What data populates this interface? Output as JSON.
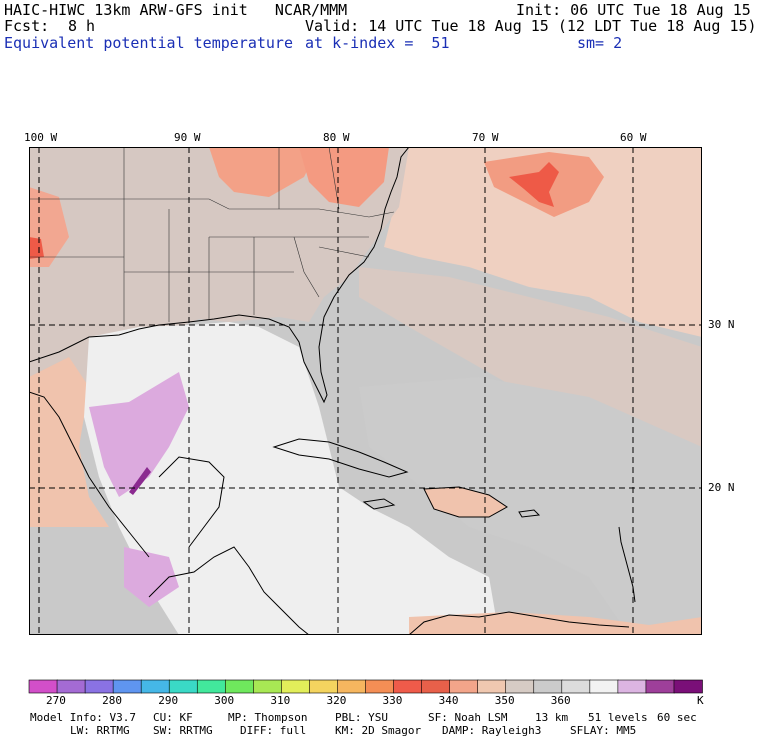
{
  "header": {
    "line1_left": "HAIC-HIWC 13km ARW-GFS init   NCAR/MMM",
    "line1_right": "Init: 06 UTC Tue 18 Aug 15",
    "fcst_label": "Fcst:",
    "fcst_value": "8 h",
    "valid": "Valid: 14 UTC Tue 18 Aug 15 (12 LDT Tue 18 Aug 15)",
    "field": "Equivalent potential temperature",
    "level": "at k-index =  51",
    "smooth": "sm= 2"
  },
  "map": {
    "lon_labels": [
      "100 W",
      "90 W",
      "80 W",
      "70 W",
      "60 W"
    ],
    "lat_labels": [
      "30 N",
      "20 N"
    ],
    "colors": {
      "land_warm": "#f2c9b4",
      "ocean_gray": "#c9c9c9",
      "gulf_white": "#efefef",
      "pale_pink": "#eed3c6",
      "salmon": "#f4907a",
      "red": "#ee5544",
      "lavender": "#dcaade",
      "purple": "#8b2a90",
      "coast": "#000000"
    }
  },
  "colorbar": {
    "colors": [
      "#d24fc9",
      "#a46bd4",
      "#8a72e3",
      "#5f95f0",
      "#45b7e7",
      "#3ad9c6",
      "#42e89c",
      "#6fe85d",
      "#a8e854",
      "#e2ee5a",
      "#f4d45f",
      "#f6b65f",
      "#f48e55",
      "#ef5b4a",
      "#e8604a",
      "#f3a58a",
      "#f0c8b0",
      "#d6cbc4",
      "#cbcbcb",
      "#dcdcdc",
      "#f2f2f2",
      "#dcb5e2",
      "#9e3f9a",
      "#7a0f78"
    ],
    "tick_labels": [
      "270",
      "280",
      "290",
      "300",
      "310",
      "320",
      "330",
      "340",
      "350",
      "360"
    ],
    "unit": "K"
  },
  "footer": {
    "row1": [
      "Model Info: V3.7",
      "CU: KF",
      "MP: Thompson",
      "PBL: YSU",
      "SF: Noah LSM",
      "13 km",
      "51 levels",
      "60 sec"
    ],
    "row2": [
      "LW: RRTMG",
      "SW: RRTMG",
      "DIFF: full",
      "KM: 2D Smagor",
      "DAMP: Rayleigh3",
      "SFLAY: MM5"
    ]
  }
}
